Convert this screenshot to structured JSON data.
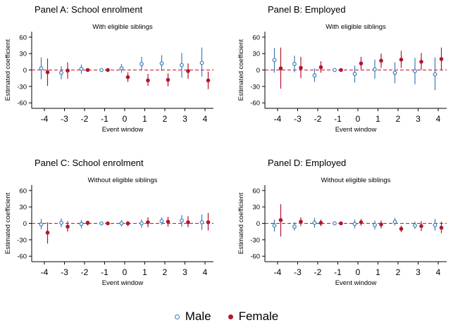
{
  "legend": {
    "male_label": "Male",
    "female_label": "Female"
  },
  "colors": {
    "male": "#3d7bb8",
    "female": "#b0162f",
    "zero_line": "#c8102e"
  },
  "chart_data": [
    {
      "type": "scatter",
      "title": "Panel A: School enrolment",
      "subtitle": "With eligible siblings",
      "xlabel": "Event window",
      "ylabel": "Estimated coefficient",
      "categories": [
        "-4",
        "-3",
        "-2",
        "-1",
        "0",
        "1",
        "2",
        "3",
        "4"
      ],
      "ylim": [
        -70,
        70
      ],
      "yticks": [
        60,
        30,
        0,
        -30,
        -60
      ],
      "series": [
        {
          "name": "Male",
          "values": [
            3,
            -5,
            2,
            0,
            3,
            11,
            12,
            9,
            13
          ],
          "ci_low": [
            -17,
            -17,
            -7,
            -1,
            -5,
            -1,
            -2,
            -14,
            -12
          ],
          "ci_high": [
            23,
            7,
            10,
            1,
            11,
            24,
            27,
            31,
            41
          ]
        },
        {
          "name": "Female",
          "values": [
            -4,
            -1,
            0,
            0,
            -13,
            -19,
            -18,
            -2,
            -19
          ],
          "ci_low": [
            -29,
            -16,
            -3,
            -1,
            -22,
            -29,
            -30,
            -16,
            -35
          ],
          "ci_high": [
            21,
            14,
            3,
            1,
            -4,
            -7,
            -6,
            12,
            -3
          ]
        }
      ]
    },
    {
      "type": "scatter",
      "title": "Panel B: Employed",
      "subtitle": "With eligible siblings",
      "xlabel": "Event window",
      "ylabel": "Estimated coefficient",
      "categories": [
        "-4",
        "-3",
        "-2",
        "-1",
        "0",
        "1",
        "2",
        "3",
        "4"
      ],
      "ylim": [
        -70,
        70
      ],
      "yticks": [
        60,
        30,
        0,
        -30,
        -60
      ],
      "series": [
        {
          "name": "Male",
          "values": [
            18,
            11,
            -10,
            0,
            -7,
            1,
            -5,
            -2,
            -8
          ],
          "ci_low": [
            -5,
            -4,
            -22,
            -1,
            -23,
            -16,
            -24,
            -26,
            -37
          ],
          "ci_high": [
            40,
            26,
            3,
            1,
            8,
            19,
            14,
            22,
            23
          ]
        },
        {
          "name": "Female",
          "values": [
            3,
            4,
            5,
            0,
            12,
            17,
            19,
            15,
            20
          ],
          "ci_low": [
            -34,
            -15,
            -5,
            -1,
            1,
            4,
            4,
            0,
            0
          ],
          "ci_high": [
            41,
            24,
            16,
            1,
            24,
            30,
            35,
            31,
            41
          ]
        }
      ]
    },
    {
      "type": "scatter",
      "title": "Panel C: School enrolment",
      "subtitle": "Without eligible siblings",
      "xlabel": "Event window",
      "ylabel": "Estimated coefficient",
      "categories": [
        "-4",
        "-3",
        "-2",
        "-1",
        "0",
        "1",
        "2",
        "3",
        "4"
      ],
      "ylim": [
        -70,
        70
      ],
      "yticks": [
        60,
        30,
        0,
        -30,
        -60
      ],
      "series": [
        {
          "name": "Male",
          "values": [
            -2,
            1,
            -1,
            0,
            0,
            0,
            4,
            5,
            2
          ],
          "ci_low": [
            -11,
            -7,
            -9,
            -1,
            -6,
            -8,
            -3,
            -6,
            -12
          ],
          "ci_high": [
            8,
            9,
            6,
            1,
            6,
            7,
            11,
            15,
            16
          ]
        },
        {
          "name": "Female",
          "values": [
            -17,
            -6,
            1,
            0,
            0,
            2,
            3,
            2,
            2
          ],
          "ci_low": [
            -37,
            -15,
            -4,
            -1,
            -5,
            -7,
            -6,
            -7,
            -13
          ],
          "ci_high": [
            2,
            4,
            5,
            1,
            4,
            11,
            12,
            13,
            19
          ]
        }
      ]
    },
    {
      "type": "scatter",
      "title": "Panel D: Employed",
      "subtitle": "Without eligible siblings",
      "xlabel": "Event window",
      "ylabel": "Estimated coefficient",
      "categories": [
        "-4",
        "-3",
        "-2",
        "-1",
        "0",
        "1",
        "2",
        "3",
        "4"
      ],
      "ylim": [
        -70,
        70
      ],
      "yticks": [
        60,
        30,
        0,
        -30,
        -60
      ],
      "series": [
        {
          "name": "Male",
          "values": [
            -4,
            -6,
            1,
            0,
            -1,
            -3,
            3,
            -4,
            -3
          ],
          "ci_low": [
            -15,
            -13,
            -8,
            -1,
            -9,
            -11,
            -4,
            -10,
            -13
          ],
          "ci_high": [
            7,
            2,
            10,
            1,
            7,
            5,
            10,
            3,
            8
          ]
        },
        {
          "name": "Female",
          "values": [
            6,
            3,
            1,
            0,
            2,
            -2,
            -10,
            -5,
            -8
          ],
          "ci_low": [
            -24,
            -5,
            -5,
            -1,
            -4,
            -9,
            -16,
            -14,
            -18
          ],
          "ci_high": [
            35,
            11,
            7,
            1,
            8,
            5,
            -4,
            4,
            3
          ]
        }
      ]
    }
  ]
}
